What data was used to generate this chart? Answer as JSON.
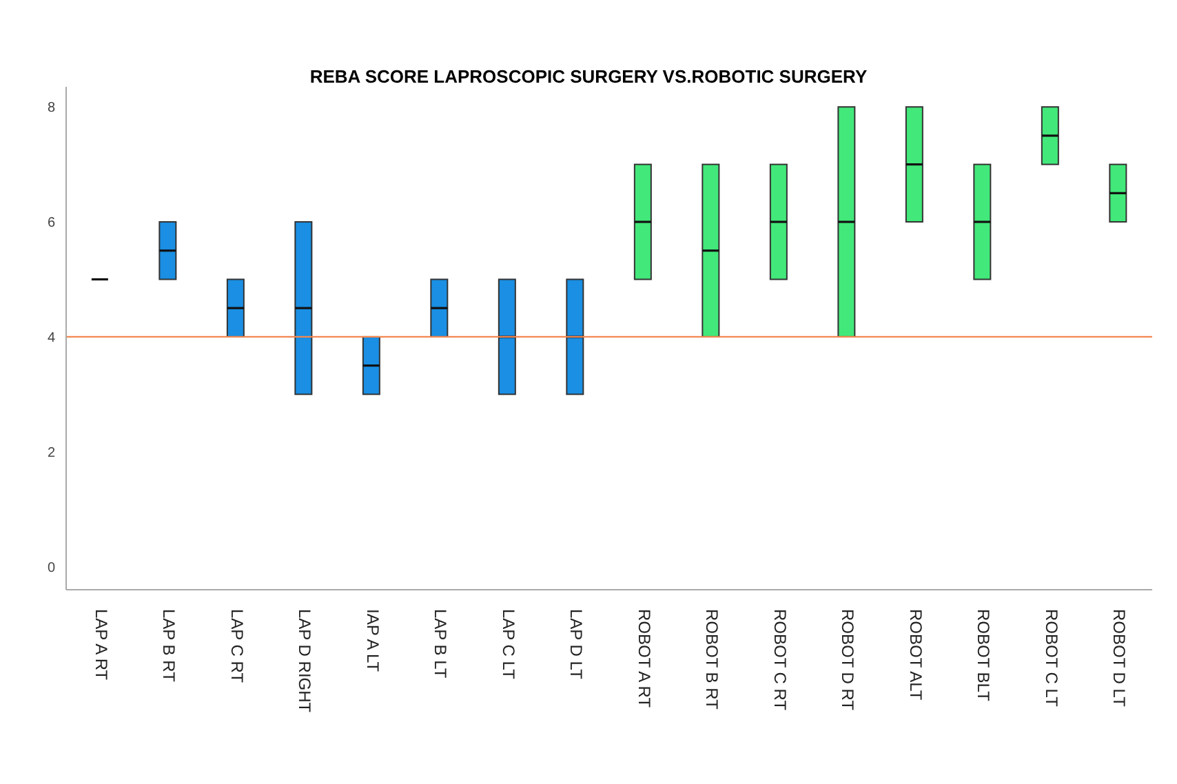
{
  "chart_data": {
    "type": "box",
    "title": "REBA SCORE LAPROSCOPIC SURGERY VS.ROBOTIC SURGERY",
    "categories": [
      "LAP A RT",
      "LAP B RT",
      "LAP C RT",
      "LAP D RIGHT",
      "IAP A LT",
      "LAP B LT",
      "LAP C LT",
      "LAP D LT",
      "ROBOT A RT",
      "ROBOT B RT",
      "ROBOT C RT",
      "ROBOT D RT",
      "ROBOT  ALT",
      "ROBOT BLT",
      "ROBOT C LT",
      "ROBOT D LT"
    ],
    "boxes": [
      {
        "low": 5,
        "q1": 5,
        "median": 5,
        "q3": 5,
        "high": 5
      },
      {
        "low": 5,
        "q1": 5,
        "median": 5.5,
        "q3": 6,
        "high": 6
      },
      {
        "low": 4,
        "q1": 4,
        "median": 4.5,
        "q3": 5,
        "high": 5
      },
      {
        "low": 3,
        "q1": 3,
        "median": 4.5,
        "q3": 6,
        "high": 6
      },
      {
        "low": 3,
        "q1": 3,
        "median": 3.5,
        "q3": 4,
        "high": 4
      },
      {
        "low": 4,
        "q1": 4,
        "median": 4.5,
        "q3": 5,
        "high": 5
      },
      {
        "low": 3,
        "q1": 3,
        "median": 4,
        "q3": 5,
        "high": 5
      },
      {
        "low": 3,
        "q1": 3,
        "median": 4,
        "q3": 5,
        "high": 5
      },
      {
        "low": 5,
        "q1": 5,
        "median": 6,
        "q3": 7,
        "high": 7
      },
      {
        "low": 4,
        "q1": 4,
        "median": 5.5,
        "q3": 7,
        "high": 7
      },
      {
        "low": 5,
        "q1": 5,
        "median": 6,
        "q3": 7,
        "high": 7
      },
      {
        "low": 4,
        "q1": 4,
        "median": 6,
        "q3": 8,
        "high": 8
      },
      {
        "low": 6,
        "q1": 6,
        "median": 7,
        "q3": 8,
        "high": 8
      },
      {
        "low": 5,
        "q1": 5,
        "median": 6,
        "q3": 7,
        "high": 7
      },
      {
        "low": 7,
        "q1": 7,
        "median": 7.5,
        "q3": 8,
        "high": 8
      },
      {
        "low": 6,
        "q1": 6,
        "median": 6.5,
        "q3": 7,
        "high": 7
      }
    ],
    "colors": [
      "#111111",
      "#1a8fe3",
      "#1a8fe3",
      "#1a8fe3",
      "#1a8fe3",
      "#1a8fe3",
      "#1a8fe3",
      "#1a8fe3",
      "#42e87a",
      "#42e87a",
      "#42e87a",
      "#42e87a",
      "#42e87a",
      "#42e87a",
      "#42e87a",
      "#42e87a"
    ],
    "ylim": [
      -0.4,
      8.35
    ],
    "yticks": [
      0,
      2,
      4,
      6,
      8
    ],
    "ref_lines": [
      {
        "axis": "y",
        "value": 4,
        "color": "#f4874f"
      }
    ]
  }
}
